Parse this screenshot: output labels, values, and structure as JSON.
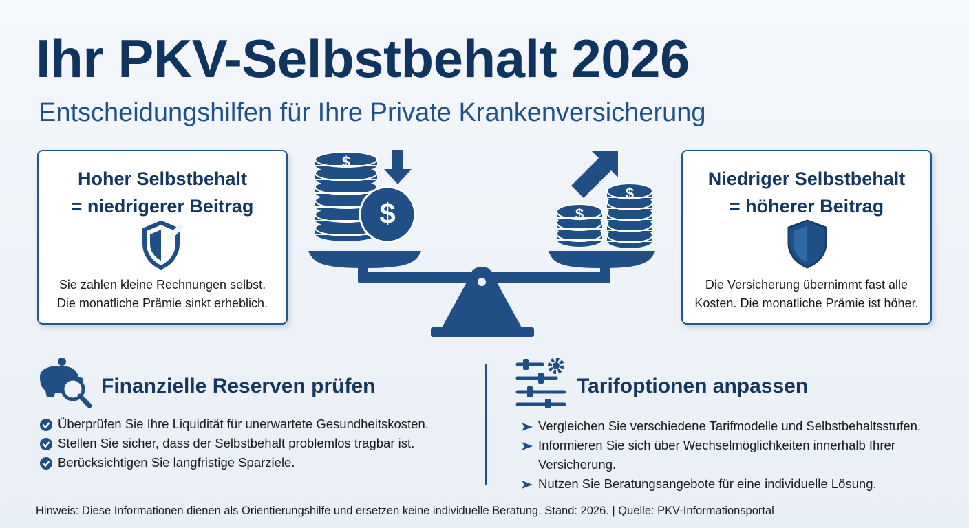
{
  "header": {
    "title": "Ihr PKV-Selbstbehalt 2026",
    "subtitle": "Entscheidungshilfen für Ihre Private Krankenversicherung"
  },
  "coin_symbol": "$",
  "cards": [
    {
      "title_lines": [
        "Hoher Selbstbehalt",
        "= niedrigerer Beitrag"
      ],
      "text_lines": [
        "Sie zahlen kleine Rechnungen selbst.",
        "Die monatliche Prämie sinkt erheblich."
      ]
    },
    {
      "title_lines": [
        "Niedriger Selbstbehalt",
        "= höherer Beitrag"
      ],
      "text_lines": [
        "Die Versicherung übernimmt fast alle",
        "Kosten. Die monatliche Prämie ist höher."
      ]
    }
  ],
  "sections": [
    {
      "heading": "Finanzielle Reserven prüfen",
      "items": [
        "Überprüfen Sie Ihre Liquidität für unerwartete Gesundheitskosten.",
        "Stellen Sie sicher, dass der Selbstbehalt problemlos tragbar ist.",
        "Berücksichtigen Sie langfristige Sparziele."
      ]
    },
    {
      "heading": "Tarifoptionen anpassen",
      "items": [
        "Vergleichen Sie verschiedene Tarifmodelle und Selbstbehaltsstufen.",
        "Informieren Sie sich über Wechselmöglichkeiten innerhalb Ihrer Versicherung.",
        "Nutzen Sie Beratungsangebote für eine individuelle Lösung."
      ]
    }
  ],
  "footer": "Hinweis: Diese Informationen dienen als Orientierungshilfe und ersetzen keine individuelle Beratung. Stand: 2026. | Quelle: PKV-Informationsportal"
}
